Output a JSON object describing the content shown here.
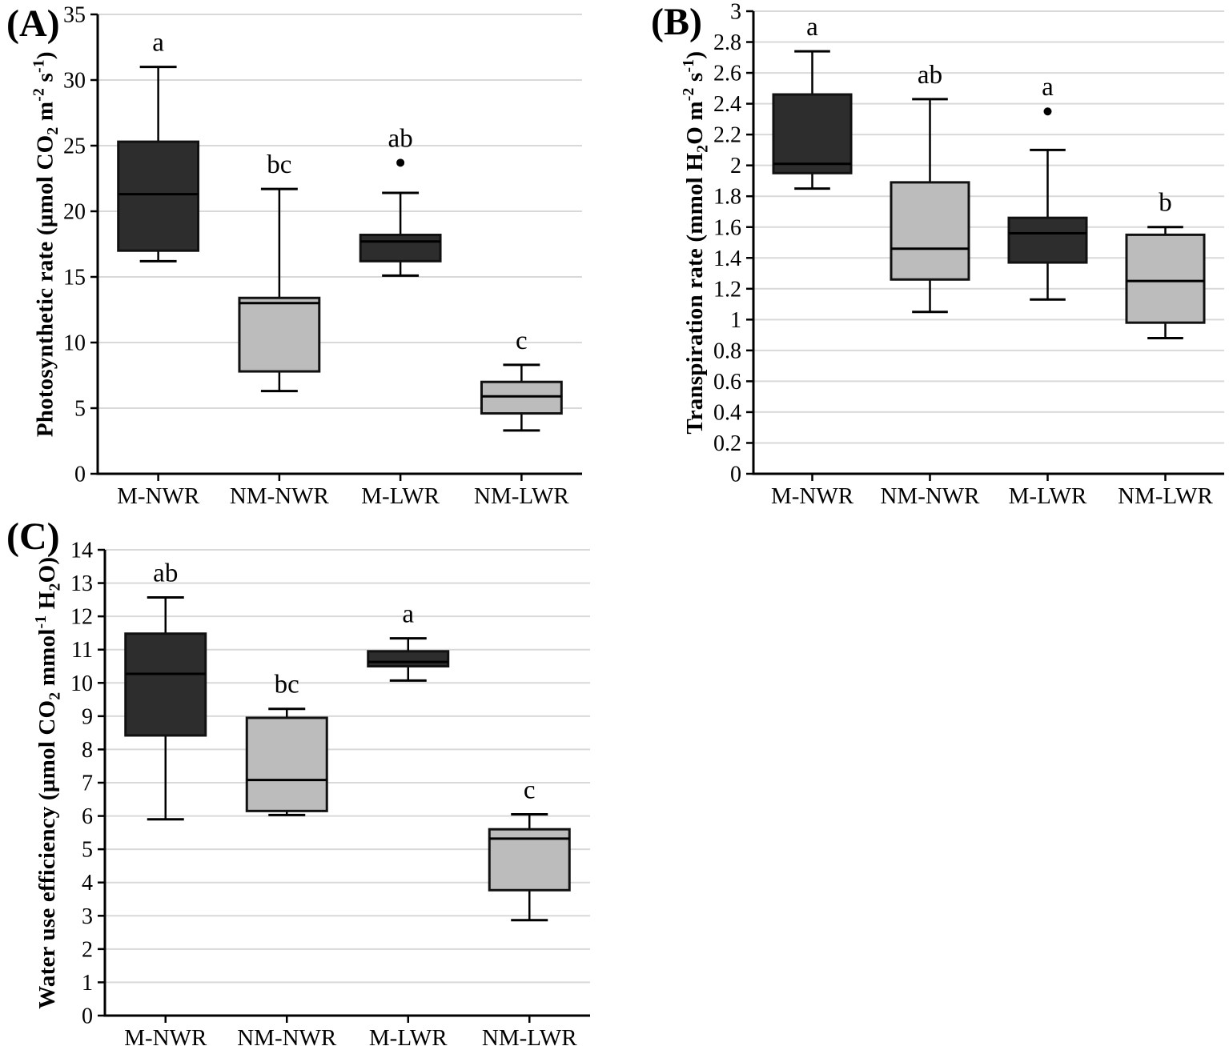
{
  "colors": {
    "dark_box": "#2d2d2d",
    "light_box": "#bcbcbc",
    "box_border": "#111111",
    "grid": "#d9d9d9",
    "axis": "#000000",
    "outlier": "#000000",
    "text": "#000000"
  },
  "chart_data": [
    {
      "type": "box",
      "panel_label": "(A)",
      "ylabel": "Photosynthetic rate (µmol CO₂ m⁻² s⁻¹)",
      "ylim": [
        0,
        35
      ],
      "ytick_step": 5,
      "grid": true,
      "legend": "none",
      "categories": [
        "M-NWR",
        "NM-NWR",
        "M-LWR",
        "NM-LWR"
      ],
      "significance_letters": [
        "a",
        "bc",
        "ab",
        "c"
      ],
      "series": [
        {
          "name": "M-NWR",
          "fill": "dark_box",
          "whisker_low": 16.2,
          "q1": 17.0,
          "median": 21.3,
          "q3": 25.3,
          "whisker_high": 31.0,
          "outliers": []
        },
        {
          "name": "NM-NWR",
          "fill": "light_box",
          "whisker_low": 6.3,
          "q1": 7.8,
          "median": 13.0,
          "q3": 13.4,
          "whisker_high": 21.7,
          "outliers": []
        },
        {
          "name": "M-LWR",
          "fill": "dark_box",
          "whisker_low": 15.1,
          "q1": 16.2,
          "median": 17.7,
          "q3": 18.2,
          "whisker_high": 21.4,
          "outliers": [
            23.7
          ]
        },
        {
          "name": "NM-LWR",
          "fill": "light_box",
          "whisker_low": 3.3,
          "q1": 4.6,
          "median": 5.9,
          "q3": 7.0,
          "whisker_high": 8.3,
          "outliers": []
        }
      ]
    },
    {
      "type": "box",
      "panel_label": "(B)",
      "ylabel": "Transpiration rate (mmol H₂O m⁻² s⁻¹)",
      "ylim": [
        0,
        3
      ],
      "ytick_step": 0.2,
      "grid": true,
      "legend": "none",
      "categories": [
        "M-NWR",
        "NM-NWR",
        "M-LWR",
        "NM-LWR"
      ],
      "significance_letters": [
        "a",
        "ab",
        "a",
        "b"
      ],
      "series": [
        {
          "name": "M-NWR",
          "fill": "dark_box",
          "whisker_low": 1.85,
          "q1": 1.95,
          "median": 2.01,
          "q3": 2.46,
          "whisker_high": 2.74,
          "outliers": []
        },
        {
          "name": "NM-NWR",
          "fill": "light_box",
          "whisker_low": 1.05,
          "q1": 1.26,
          "median": 1.46,
          "q3": 1.89,
          "whisker_high": 2.43,
          "outliers": []
        },
        {
          "name": "M-LWR",
          "fill": "dark_box",
          "whisker_low": 1.13,
          "q1": 1.37,
          "median": 1.56,
          "q3": 1.66,
          "whisker_high": 2.1,
          "outliers": [
            2.35
          ]
        },
        {
          "name": "NM-LWR",
          "fill": "light_box",
          "whisker_low": 0.88,
          "q1": 0.98,
          "median": 1.25,
          "q3": 1.55,
          "whisker_high": 1.6,
          "outliers": []
        }
      ]
    },
    {
      "type": "box",
      "panel_label": "(C)",
      "ylabel": "Water use efficiency (µmol CO₂ mmol⁻¹ H₂O)",
      "ylim": [
        0,
        14
      ],
      "ytick_step": 1,
      "grid": true,
      "legend": "none",
      "categories": [
        "M-NWR",
        "NM-NWR",
        "M-LWR",
        "NM-LWR"
      ],
      "significance_letters": [
        "ab",
        "bc",
        "a",
        "c"
      ],
      "series": [
        {
          "name": "M-NWR",
          "fill": "dark_box",
          "whisker_low": 5.9,
          "q1": 8.42,
          "median": 10.27,
          "q3": 11.48,
          "whisker_high": 12.57,
          "outliers": []
        },
        {
          "name": "NM-NWR",
          "fill": "light_box",
          "whisker_low": 6.03,
          "q1": 6.15,
          "median": 7.08,
          "q3": 8.95,
          "whisker_high": 9.22,
          "outliers": []
        },
        {
          "name": "M-LWR",
          "fill": "dark_box",
          "whisker_low": 10.07,
          "q1": 10.5,
          "median": 10.63,
          "q3": 10.95,
          "whisker_high": 11.34,
          "outliers": []
        },
        {
          "name": "NM-LWR",
          "fill": "light_box",
          "whisker_low": 2.87,
          "q1": 3.77,
          "median": 5.32,
          "q3": 5.6,
          "whisker_high": 6.05,
          "outliers": []
        }
      ]
    }
  ]
}
